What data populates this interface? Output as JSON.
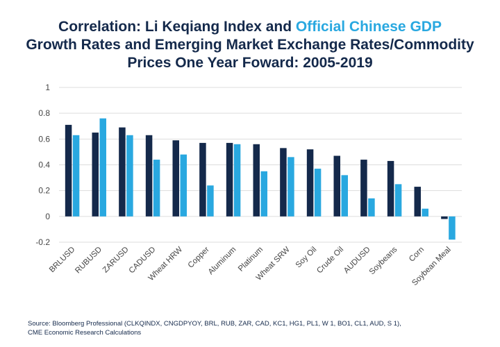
{
  "title": {
    "line1_prefix": "Correlation: Li Keqiang Index and ",
    "line1_highlight": "Official Chinese GDP",
    "line2": "Growth Rates and Emerging Market Exchange Rates/Commodity",
    "line3": "Prices One Year Foward: 2005-2019"
  },
  "source": {
    "line1": "Source: Bloomberg Professional (CLKQINDX, CNGDPYOY, BRL, RUB, ZAR, CAD, KC1, HG1, PL1, W 1, BO1, CL1, AUD, S 1),",
    "line2": "CME Economic Research Calculations"
  },
  "colors": {
    "li_keqiang": "#14294b",
    "official_gdp": "#29a8e0",
    "grid": "#dddddd"
  },
  "chart_data": {
    "type": "bar",
    "title": "Correlation: Li Keqiang Index and Official Chinese GDP Growth Rates and Emerging Market Exchange Rates/Commodity Prices One Year Foward: 2005-2019",
    "xlabel": "",
    "ylabel": "",
    "ylim": [
      -0.2,
      1
    ],
    "yticks": [
      -0.2,
      0,
      0.2,
      0.4,
      0.6,
      0.8,
      1
    ],
    "ytick_labels": [
      "-0.2",
      "0",
      "0.2",
      "0.4",
      "0.6",
      "0.8",
      "1"
    ],
    "grid": true,
    "categories": [
      "BRLUSD",
      "RUBUSD",
      "ZARUSD",
      "CADUSD",
      "Wheat HRW",
      "Copper",
      "Aluminum",
      "Platinum",
      "Wheat SRW",
      "Soy Oil",
      "Crude Oil",
      "AUDUSD",
      "Soybeans",
      "Corn",
      "Soybean Meal"
    ],
    "series": [
      {
        "name": "Li Keqiang Index",
        "values": [
          0.71,
          0.65,
          0.69,
          0.63,
          0.59,
          0.57,
          0.57,
          0.56,
          0.53,
          0.52,
          0.47,
          0.44,
          0.43,
          0.23,
          -0.02
        ]
      },
      {
        "name": "Official Chinese GDP",
        "values": [
          0.63,
          0.76,
          0.63,
          0.44,
          0.48,
          0.24,
          0.56,
          0.35,
          0.46,
          0.37,
          0.32,
          0.14,
          0.25,
          0.06,
          -0.18
        ]
      }
    ]
  }
}
